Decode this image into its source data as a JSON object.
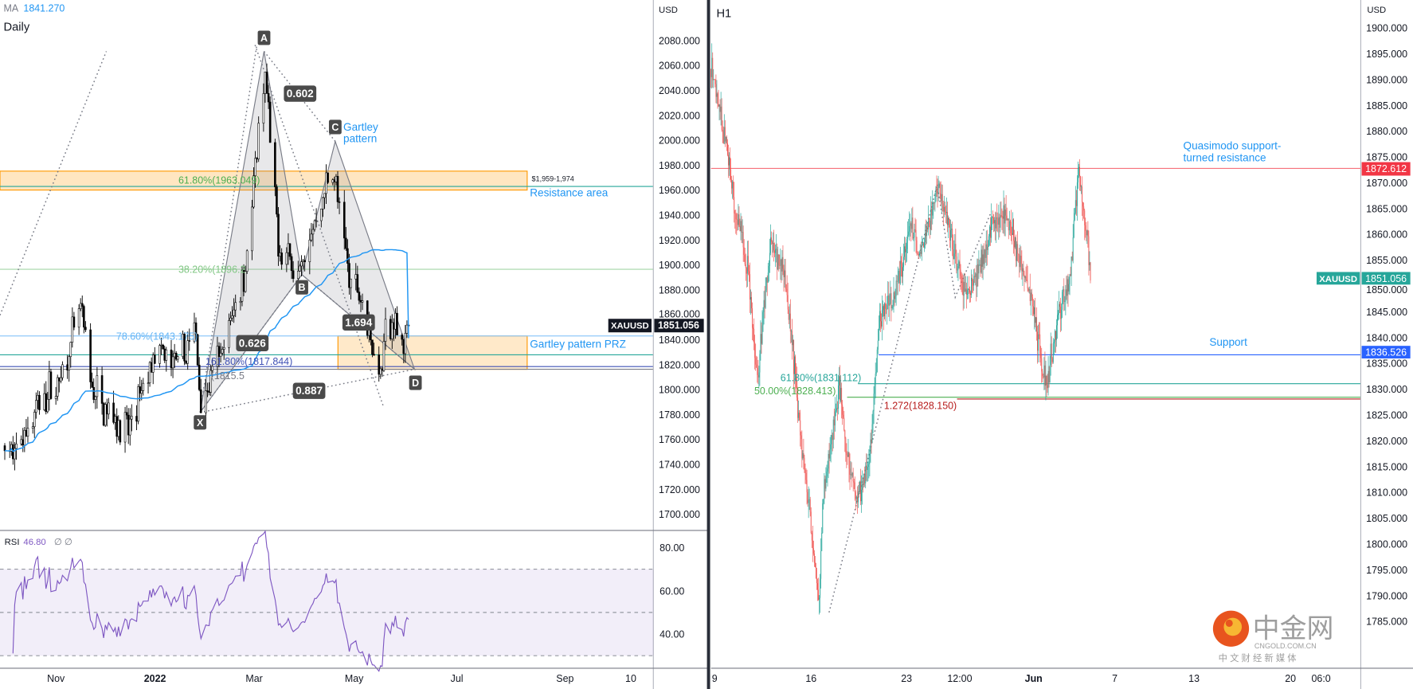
{
  "left_chart": {
    "ma_label": "MA",
    "ma_value": "1841.270",
    "timeframe": "Daily",
    "currency": "USD",
    "price_ticks": [
      "2080.000",
      "2060.000",
      "2040.000",
      "2020.000",
      "2000.000",
      "1980.000",
      "1960.000",
      "1940.000",
      "1920.000",
      "1900.000",
      "1880.000",
      "1860.000",
      "1840.000",
      "1820.000",
      "1800.000",
      "1780.000",
      "1760.000",
      "1740.000",
      "1720.000",
      "1700.000"
    ],
    "time_ticks": [
      "Nov",
      "2022",
      "Mar",
      "May",
      "Jul",
      "Sep",
      "10"
    ],
    "symbol": "XAUUSD",
    "last_price": "1851.056",
    "points": {
      "X": "X",
      "A": "A",
      "B": "B",
      "C": "C",
      "D": "D"
    },
    "ratios": {
      "xab": "0.626",
      "abc": "0.602",
      "bcd": "1.694",
      "xad": "0.887"
    },
    "gartley_line1": "Gartley",
    "gartley_line2": "pattern",
    "resistance_range": "$1,959-1,974",
    "resistance_label": "Resistance area",
    "prz_label": "Gartley pattern PRZ",
    "fib_618": "61.80%(1963.049)",
    "fib_382": "38.20%(1896.2",
    "fib_786": "78.60%(1843.175)",
    "fib_1618": "161.80%(1817.844)",
    "fib_extra": "(1815.5",
    "colors": {
      "ma": "#2196f3",
      "fib_green": "#4caf50",
      "fib_blue": "#2196f3",
      "zone": "#ffe0b2",
      "zone_border": "#ff9800",
      "pattern_fill": "#9598a1"
    }
  },
  "rsi": {
    "label": "RSI",
    "value": "46.80",
    "extra": "∅ ∅",
    "ticks": [
      "80.00",
      "60.00",
      "40.00"
    ],
    "color": "#7e57c2"
  },
  "right_chart": {
    "timeframe": "H1",
    "currency": "USD",
    "price_ticks": [
      "1900.000",
      "1895.000",
      "1890.000",
      "1885.000",
      "1880.000",
      "1875.000",
      "1870.000",
      "1865.000",
      "1860.000",
      "1855.000",
      "1850.000",
      "1845.000",
      "1840.000",
      "1835.000",
      "1830.000",
      "1825.000",
      "1820.000",
      "1815.000",
      "1810.000",
      "1805.000",
      "1800.000",
      "1795.000",
      "1790.000",
      "1785.000"
    ],
    "time_ticks": [
      "9",
      "16",
      "23",
      "12:00",
      "Jun",
      "7",
      "13",
      "20",
      "06:0"
    ],
    "symbol": "XAUUSD",
    "last_price": "1851.056",
    "resistance_price": "1872.612",
    "resistance_line1": "Quasimodo support-",
    "resistance_line2": "turned resistance",
    "support_price": "1836.526",
    "support_label": "Support",
    "fib_618": "61.80%(1831.112)",
    "fib_500": "50.00%(1828.413)",
    "ext_1272": "1.272(1828.150)",
    "colors": {
      "up": "#26a69a",
      "down": "#ef5350",
      "resistance": "#f23645",
      "support": "#2962ff"
    }
  },
  "watermark": {
    "brand": "中金网",
    "domain": "CNGOLD.COM.CN",
    "tagline": "中 文 财 经 新 媒 体"
  },
  "chart_data": [
    {
      "type": "candlestick",
      "title": "Daily",
      "symbol": "XAUUSD",
      "ylim": [
        1690,
        2095
      ],
      "approx_close_path": [
        [
          "2021-10-01",
          1755
        ],
        [
          "2021-10-06",
          1745
        ],
        [
          "2021-10-20",
          1785
        ],
        [
          "2021-11-05",
          1810
        ],
        [
          "2021-11-16",
          1865
        ],
        [
          "2021-11-23",
          1800
        ],
        [
          "2021-12-15",
          1765
        ],
        [
          "2021-12-31",
          1828
        ],
        [
          "2022-01-14",
          1820
        ],
        [
          "2022-01-25",
          1845
        ],
        [
          "2022-01-28",
          1790
        ],
        [
          "2022-02-10",
          1830
        ],
        [
          "2022-02-24",
          1900
        ],
        [
          "2022-03-08",
          2050
        ],
        [
          "2022-03-16",
          1915
        ],
        [
          "2022-03-29",
          1895
        ],
        [
          "2022-04-18",
          1980
        ],
        [
          "2022-04-21",
          1950
        ],
        [
          "2022-04-28",
          1890
        ],
        [
          "2022-05-05",
          1880
        ],
        [
          "2022-05-16",
          1812
        ],
        [
          "2022-05-20",
          1845
        ],
        [
          "2022-05-27",
          1852
        ],
        [
          "2022-06-01",
          1835
        ],
        [
          "2022-06-03",
          1851
        ]
      ],
      "gartley": {
        "X": [
          "2022-01-28",
          1780
        ],
        "A": [
          "2022-03-08",
          2070
        ],
        "B": [
          "2022-03-29",
          1890
        ],
        "C": [
          "2022-04-18",
          2000
        ],
        "D": [
          "2022-06-03",
          1815
        ]
      },
      "levels": {
        "resistance_area": [
          1959,
          1974
        ],
        "prz": [
          1815.5,
          1843.175
        ],
        "fib_618": 1963.049,
        "fib_382": 1896.2,
        "fib_786": 1843.175,
        "fib_1618": 1817.844,
        "h1_support": 1828
      },
      "ma_last": 1841.27
    },
    {
      "type": "line",
      "title": "RSI",
      "ylim": [
        25,
        85
      ],
      "bands": [
        30,
        50,
        70
      ],
      "last": 46.8
    },
    {
      "type": "candlestick",
      "title": "H1",
      "symbol": "XAUUSD",
      "ylim": [
        1783,
        1902
      ],
      "approx_close_path": [
        [
          "05-09 00",
          1892
        ],
        [
          "05-09 12",
          1883
        ],
        [
          "05-10 06",
          1865
        ],
        [
          "05-10 22",
          1853
        ],
        [
          "05-11 10",
          1832
        ],
        [
          "05-12 03",
          1858
        ],
        [
          "05-12 20",
          1853
        ],
        [
          "05-13 13",
          1827
        ],
        [
          "05-16 01",
          1811
        ],
        [
          "05-16 16",
          1787
        ],
        [
          "05-16 20",
          1808
        ],
        [
          "05-17 17",
          1830
        ],
        [
          "05-18 04",
          1816
        ],
        [
          "05-18 16",
          1808
        ],
        [
          "05-19 09",
          1818
        ],
        [
          "05-19 20",
          1844
        ],
        [
          "05-20 13",
          1848
        ],
        [
          "05-23 12",
          1862
        ],
        [
          "05-23 22",
          1855
        ],
        [
          "05-24 22",
          1870
        ],
        [
          "05-25 15",
          1858
        ],
        [
          "05-26 08",
          1848
        ],
        [
          "05-27 01",
          1853
        ],
        [
          "05-27 18",
          1862
        ],
        [
          "05-30 12",
          1864
        ],
        [
          "05-31 05",
          1855
        ],
        [
          "05-31 22",
          1846
        ],
        [
          "06-01 14",
          1830
        ],
        [
          "06-02 08",
          1846
        ],
        [
          "06-02 19",
          1850
        ],
        [
          "06-03 07",
          1872
        ],
        [
          "06-03 18",
          1860
        ],
        [
          "06-03 22",
          1851
        ]
      ],
      "levels": {
        "resistance": 1872.612,
        "support": 1836.526,
        "fib_618": 1831.112,
        "fib_500": 1828.413,
        "ext_1272": 1828.15
      }
    }
  ]
}
